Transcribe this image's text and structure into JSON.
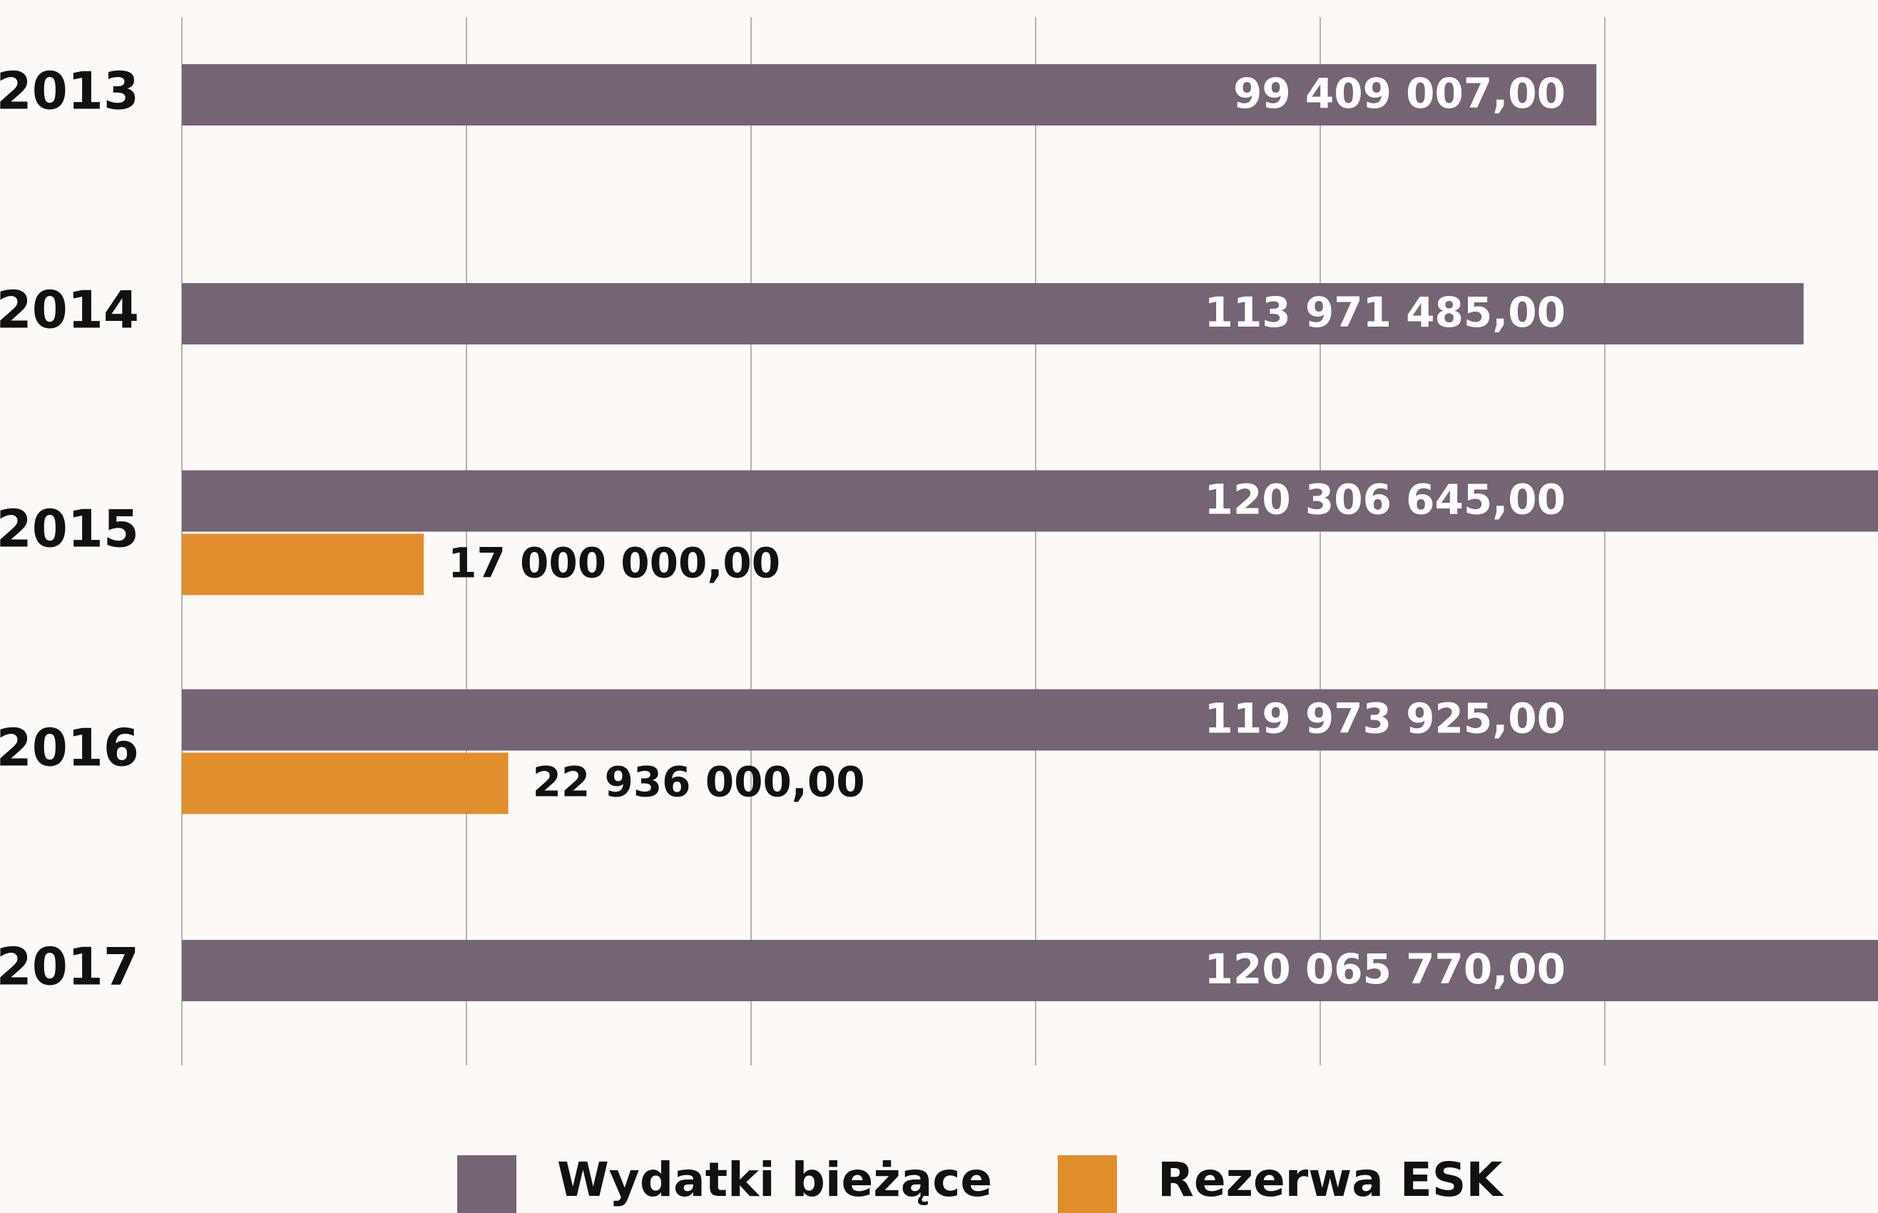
{
  "chart_data": {
    "type": "hbar",
    "categories": [
      "2013",
      "2014",
      "2015",
      "2016",
      "2017"
    ],
    "series": [
      {
        "name": "Wydatki bieżące",
        "color": "#756473",
        "values": [
          99409007,
          113971485,
          120306645,
          119973925,
          120065770
        ],
        "value_labels": [
          "99 409 007,00",
          "113 971 485,00",
          "120 306 645,00",
          "119 973 925,00",
          "120 065 770,00"
        ]
      },
      {
        "name": "Rezerwa ESK",
        "color": "#e08e2b",
        "values": [
          null,
          null,
          17000000,
          22936000,
          null
        ],
        "value_labels": [
          null,
          null,
          "17 000 000,00",
          "22 936 000,00",
          null
        ]
      }
    ],
    "xlim": [
      0,
      119200000
    ],
    "xticks": [
      0,
      20000000,
      40000000,
      60000000,
      80000000,
      100000000
    ],
    "grid": true
  }
}
